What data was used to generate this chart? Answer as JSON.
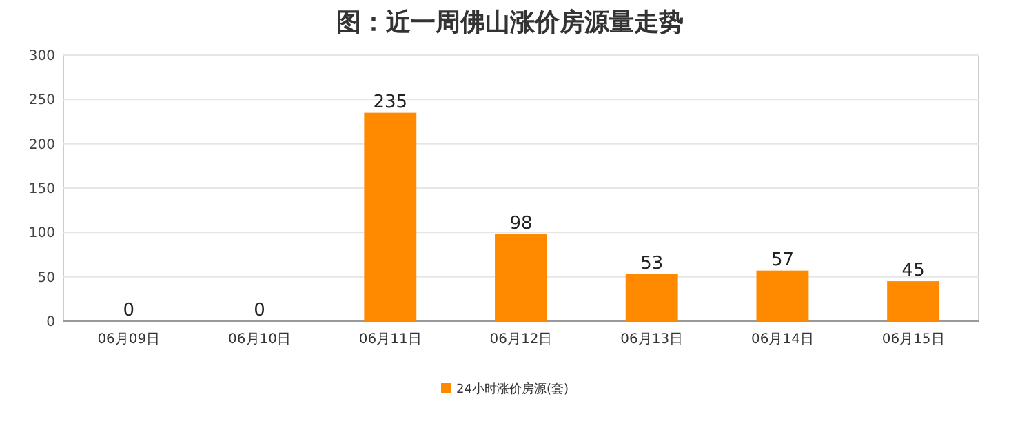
{
  "chart_data": {
    "type": "bar",
    "title": "图：近一周佛山涨价房源量走势",
    "categories": [
      "06月09日",
      "06月10日",
      "06月11日",
      "06月12日",
      "06月13日",
      "06月14日",
      "06月15日"
    ],
    "series": [
      {
        "name": "24小时涨价房源(套)",
        "color": "#ff8a00",
        "values": [
          0,
          0,
          235,
          98,
          53,
          57,
          45
        ]
      }
    ],
    "ylim": [
      0,
      300
    ],
    "yticks": [
      0,
      50,
      100,
      150,
      200,
      250,
      300
    ],
    "grid": "y",
    "legend": "bottom",
    "data_labels": true
  }
}
